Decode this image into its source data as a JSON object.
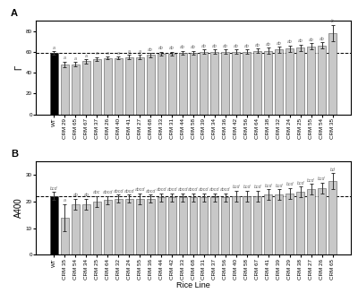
{
  "chart_data": [
    {
      "type": "bar",
      "panel_label": "A",
      "categories": [
        "WT",
        "CRM 29",
        "CRM 65",
        "CRM 67",
        "CRM 37",
        "CRM 26",
        "CRM 40",
        "CRM 41",
        "CRM 27",
        "CRM 68",
        "CRM 33",
        "CRM 31",
        "CRM 44",
        "CRM 58",
        "CRM 39",
        "CRM 34",
        "CRM 36",
        "CRM 42",
        "CRM 56",
        "CRM 64",
        "CRM 38",
        "CRM 32",
        "CRM 24",
        "CRM 25",
        "CRM 55",
        "CRM 54",
        "CRM 35"
      ],
      "values": [
        59,
        48,
        48,
        51,
        53,
        54,
        54,
        55,
        55,
        57,
        58,
        58,
        59,
        59,
        60,
        60,
        60,
        60,
        60,
        61,
        61,
        62,
        63,
        64,
        65,
        66,
        78
      ],
      "errors": [
        1.5,
        2.5,
        2,
        2,
        2,
        1.5,
        1.5,
        2,
        2,
        2,
        2,
        2,
        2,
        2,
        2,
        2,
        2,
        2,
        2,
        2,
        3,
        3,
        3,
        3,
        3,
        3,
        8
      ],
      "annotations": [
        "a",
        "a",
        "a",
        "a",
        "a",
        "a",
        "a",
        "a",
        "a",
        "ab",
        "ab",
        "ab",
        "ab",
        "ab",
        "ab",
        "ab",
        "ab",
        "ab",
        "ab",
        "ab",
        "ab",
        "ab",
        "ab",
        "ab",
        "ab",
        "ab",
        "b"
      ],
      "colors": [
        "#000000",
        "#c8c8c8",
        "#c8c8c8",
        "#c8c8c8",
        "#c8c8c8",
        "#c8c8c8",
        "#c8c8c8",
        "#c8c8c8",
        "#c8c8c8",
        "#c8c8c8",
        "#c8c8c8",
        "#c8c8c8",
        "#c8c8c8",
        "#c8c8c8",
        "#c8c8c8",
        "#c8c8c8",
        "#c8c8c8",
        "#c8c8c8",
        "#c8c8c8",
        "#c8c8c8",
        "#c8c8c8",
        "#c8c8c8",
        "#c8c8c8",
        "#c8c8c8",
        "#c8c8c8",
        "#c8c8c8",
        "#c8c8c8"
      ],
      "reference_line": 59,
      "ylabel": "Γ",
      "ylim": [
        0,
        90
      ],
      "yticks": [
        0,
        20,
        40,
        60,
        80
      ]
    },
    {
      "type": "bar",
      "panel_label": "B",
      "categories": [
        "WT",
        "CRM 35",
        "CRM 54",
        "CRM 34",
        "CRM 25",
        "CRM 64",
        "CRM 32",
        "CRM 24",
        "CRM 55",
        "CRM 36",
        "CRM 44",
        "CRM 42",
        "CRM 33",
        "CRM 68",
        "CRM 31",
        "CRM 37",
        "CRM 56",
        "CRM 40",
        "CRM 58",
        "CRM 67",
        "CRM 41",
        "CRM 39",
        "CRM 29",
        "CRM 38",
        "CRM 27",
        "CRM 26",
        "CRM 65"
      ],
      "values": [
        22,
        14,
        19,
        19,
        20,
        20.5,
        21,
        21,
        21,
        21,
        21.5,
        21.5,
        21.5,
        21.5,
        21.5,
        21.5,
        21.5,
        22,
        22,
        22,
        22.5,
        22.5,
        23,
        23.5,
        24.5,
        25,
        27.5
      ],
      "errors": [
        1.5,
        5,
        2,
        2,
        2,
        1.5,
        1.5,
        1.5,
        2,
        1.5,
        1.5,
        1.5,
        1.5,
        1.5,
        1.5,
        1.5,
        1.5,
        2,
        2,
        2,
        2,
        2,
        2,
        2,
        2,
        2,
        3
      ],
      "annotations": [
        "bcd",
        "a",
        "ab",
        "ab",
        "abc",
        "abcd",
        "abcd",
        "abcd",
        "abcd",
        "abcd",
        "abcd",
        "abcd",
        "abcd",
        "abcd",
        "abcd",
        "abcd",
        "abcd",
        "bcd",
        "bcd",
        "bcd",
        "bcd",
        "bcd",
        "bcd",
        "bcd",
        "bcd",
        "bcd",
        "bd"
      ],
      "colors": [
        "#000000",
        "#c8c8c8",
        "#c8c8c8",
        "#c8c8c8",
        "#c8c8c8",
        "#c8c8c8",
        "#c8c8c8",
        "#c8c8c8",
        "#c8c8c8",
        "#c8c8c8",
        "#c8c8c8",
        "#c8c8c8",
        "#c8c8c8",
        "#c8c8c8",
        "#c8c8c8",
        "#c8c8c8",
        "#c8c8c8",
        "#c8c8c8",
        "#c8c8c8",
        "#c8c8c8",
        "#c8c8c8",
        "#c8c8c8",
        "#c8c8c8",
        "#c8c8c8",
        "#c8c8c8",
        "#c8c8c8",
        "#c8c8c8"
      ],
      "reference_line": 22,
      "ylabel": "A400",
      "xlabel": "Rice Line",
      "ylim": [
        0,
        35
      ],
      "yticks": [
        0,
        10,
        20,
        30
      ]
    }
  ]
}
